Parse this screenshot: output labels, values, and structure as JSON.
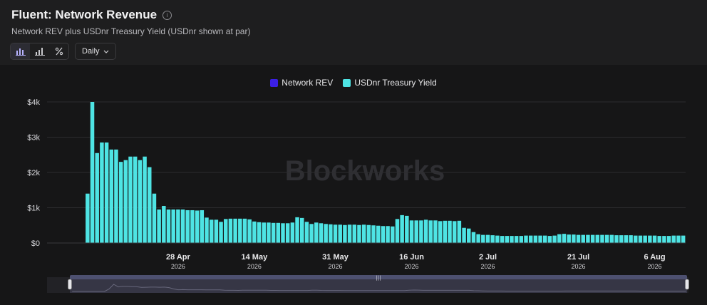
{
  "header": {
    "title": "Fluent: Network Revenue",
    "info_glyph": "i",
    "subtitle": "Network REV plus USDnr Treasury Yield (USDnr shown at par)"
  },
  "toolbar": {
    "chart_type_icons": [
      "bar-chart-icon",
      "stacked-bar-chart-icon",
      "percent-chart-icon"
    ],
    "interval_label": "Daily"
  },
  "watermark": "Blockworks",
  "colors": {
    "network_rev": "#3b1fe6",
    "treasury_yield": "#4ee4e4",
    "background": "#1e1e1f",
    "plot_background": "#161617"
  },
  "chart_data": {
    "type": "bar",
    "stacked": true,
    "x_start": "2026-04-01",
    "x_step": "1 day",
    "series": [
      {
        "name": "Network REV",
        "values": [
          0,
          0,
          0,
          0,
          0,
          0,
          0,
          0,
          0,
          0,
          0,
          0,
          0,
          0,
          0,
          0,
          0,
          0,
          0,
          0,
          0,
          0,
          0,
          0,
          0,
          0,
          0,
          0,
          0,
          0,
          0,
          0,
          0,
          0,
          0,
          0,
          0,
          0,
          0,
          0,
          0,
          0,
          0,
          0,
          0,
          0,
          0,
          0,
          0,
          0,
          0,
          0,
          0,
          0,
          0,
          0,
          0,
          0,
          0,
          0,
          0,
          0,
          0,
          0,
          0,
          0,
          0,
          0,
          0,
          0,
          0,
          0,
          0,
          0,
          0,
          0,
          0,
          0,
          0,
          0,
          0,
          0,
          0,
          0,
          0,
          0,
          0,
          0,
          0,
          0,
          0,
          0,
          0,
          0,
          0,
          0,
          0,
          0,
          0,
          0,
          0,
          0,
          0,
          0,
          0,
          0,
          0,
          0,
          0,
          0,
          0,
          0,
          0,
          0,
          0,
          0,
          0,
          0,
          0,
          0,
          0,
          0,
          0,
          0,
          0,
          0,
          0,
          0,
          0,
          0,
          0,
          0,
          0
        ]
      },
      {
        "name": "USDnr Treasury Yield",
        "values": [
          0,
          0,
          0,
          0,
          0,
          0,
          0,
          0,
          1400,
          4000,
          2550,
          2850,
          2850,
          2650,
          2650,
          2300,
          2350,
          2450,
          2450,
          2350,
          2450,
          2150,
          1400,
          950,
          1050,
          950,
          950,
          950,
          950,
          930,
          930,
          920,
          930,
          720,
          660,
          660,
          600,
          680,
          690,
          690,
          690,
          690,
          670,
          610,
          590,
          580,
          580,
          570,
          570,
          560,
          560,
          580,
          730,
          710,
          600,
          540,
          580,
          560,
          540,
          530,
          520,
          520,
          510,
          520,
          520,
          510,
          520,
          510,
          500,
          490,
          480,
          480,
          470,
          680,
          790,
          770,
          640,
          640,
          640,
          660,
          640,
          640,
          620,
          630,
          630,
          620,
          630,
          430,
          410,
          310,
          250,
          230,
          230,
          220,
          210,
          200,
          200,
          200,
          200,
          200,
          210,
          210,
          210,
          210,
          210,
          200,
          210,
          250,
          260,
          240,
          240,
          230,
          230,
          230,
          230,
          230,
          230,
          230,
          230,
          220,
          220,
          220,
          220,
          210,
          210,
          210,
          210,
          210,
          200,
          200,
          200,
          210,
          210,
          210
        ]
      }
    ],
    "ylim": [
      0,
      4000
    ],
    "y_ticks": [
      0,
      1000,
      2000,
      3000,
      4000
    ],
    "y_tick_labels": [
      "$0",
      "$1k",
      "$2k",
      "$3k",
      "$4k"
    ],
    "x_ticks": [
      {
        "label": "28 Apr",
        "year": "2026",
        "date": "2026-04-28"
      },
      {
        "label": "14 May",
        "year": "2026",
        "date": "2026-05-14"
      },
      {
        "label": "31 May",
        "year": "2026",
        "date": "2026-05-31"
      },
      {
        "label": "16 Jun",
        "year": "2026",
        "date": "2026-06-16"
      },
      {
        "label": "2 Jul",
        "year": "2026",
        "date": "2026-07-02"
      },
      {
        "label": "21 Jul",
        "year": "2026",
        "date": "2026-07-21"
      },
      {
        "label": "6 Aug",
        "year": "2026",
        "date": "2026-08-06"
      }
    ],
    "grid": true,
    "legend_position": "top-center"
  }
}
